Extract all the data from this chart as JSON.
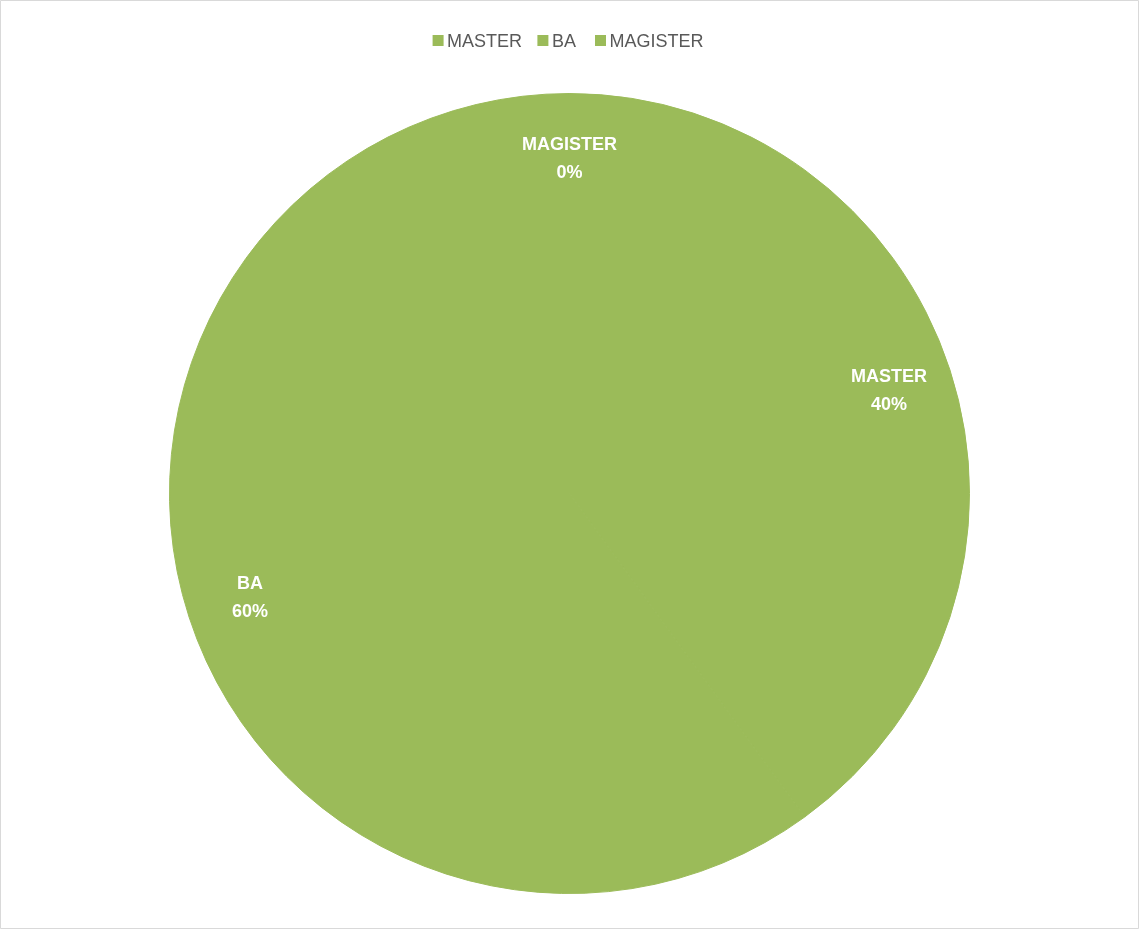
{
  "chart_data": {
    "type": "pie",
    "categories": [
      "MASTER",
      "BA",
      "MAGISTER"
    ],
    "values": [
      40,
      60,
      0
    ],
    "value_labels": [
      "40%",
      "60%",
      "0%"
    ],
    "colors": [
      "#9bbb59",
      "#9bbb59",
      "#9bbb59"
    ],
    "legend": "top"
  }
}
